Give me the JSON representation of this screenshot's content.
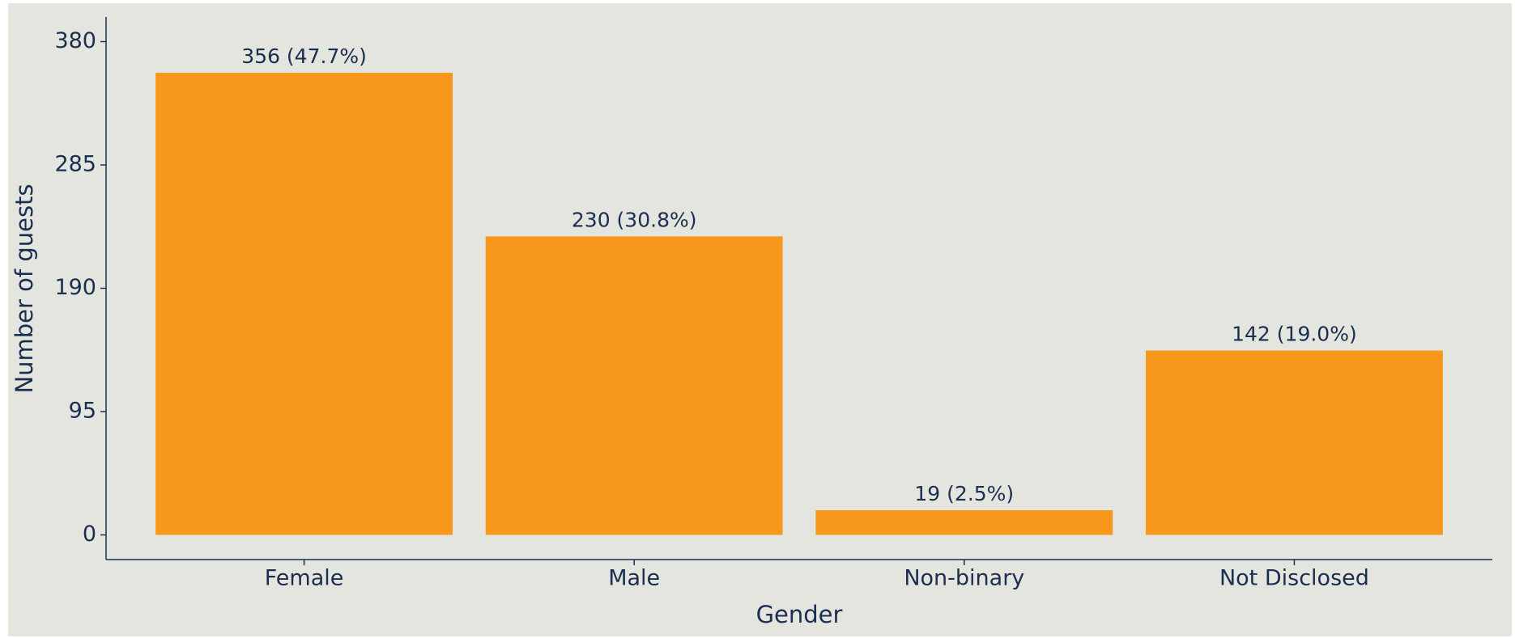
{
  "chart_data": {
    "type": "bar",
    "x_label": "Gender",
    "y_label": "Number of guests",
    "categories": [
      "Female",
      "Male",
      "Non-binary",
      "Not Disclosed"
    ],
    "values": [
      356,
      230,
      19,
      142
    ],
    "value_labels": [
      "356 (47.7%)",
      "230 (30.8%)",
      "19 (2.5%)",
      "142 (19.0%)"
    ],
    "color": "#f7981d",
    "ylim": [
      -19,
      399
    ],
    "yticks": [
      0,
      95,
      190,
      285,
      380
    ],
    "grid": false
  }
}
